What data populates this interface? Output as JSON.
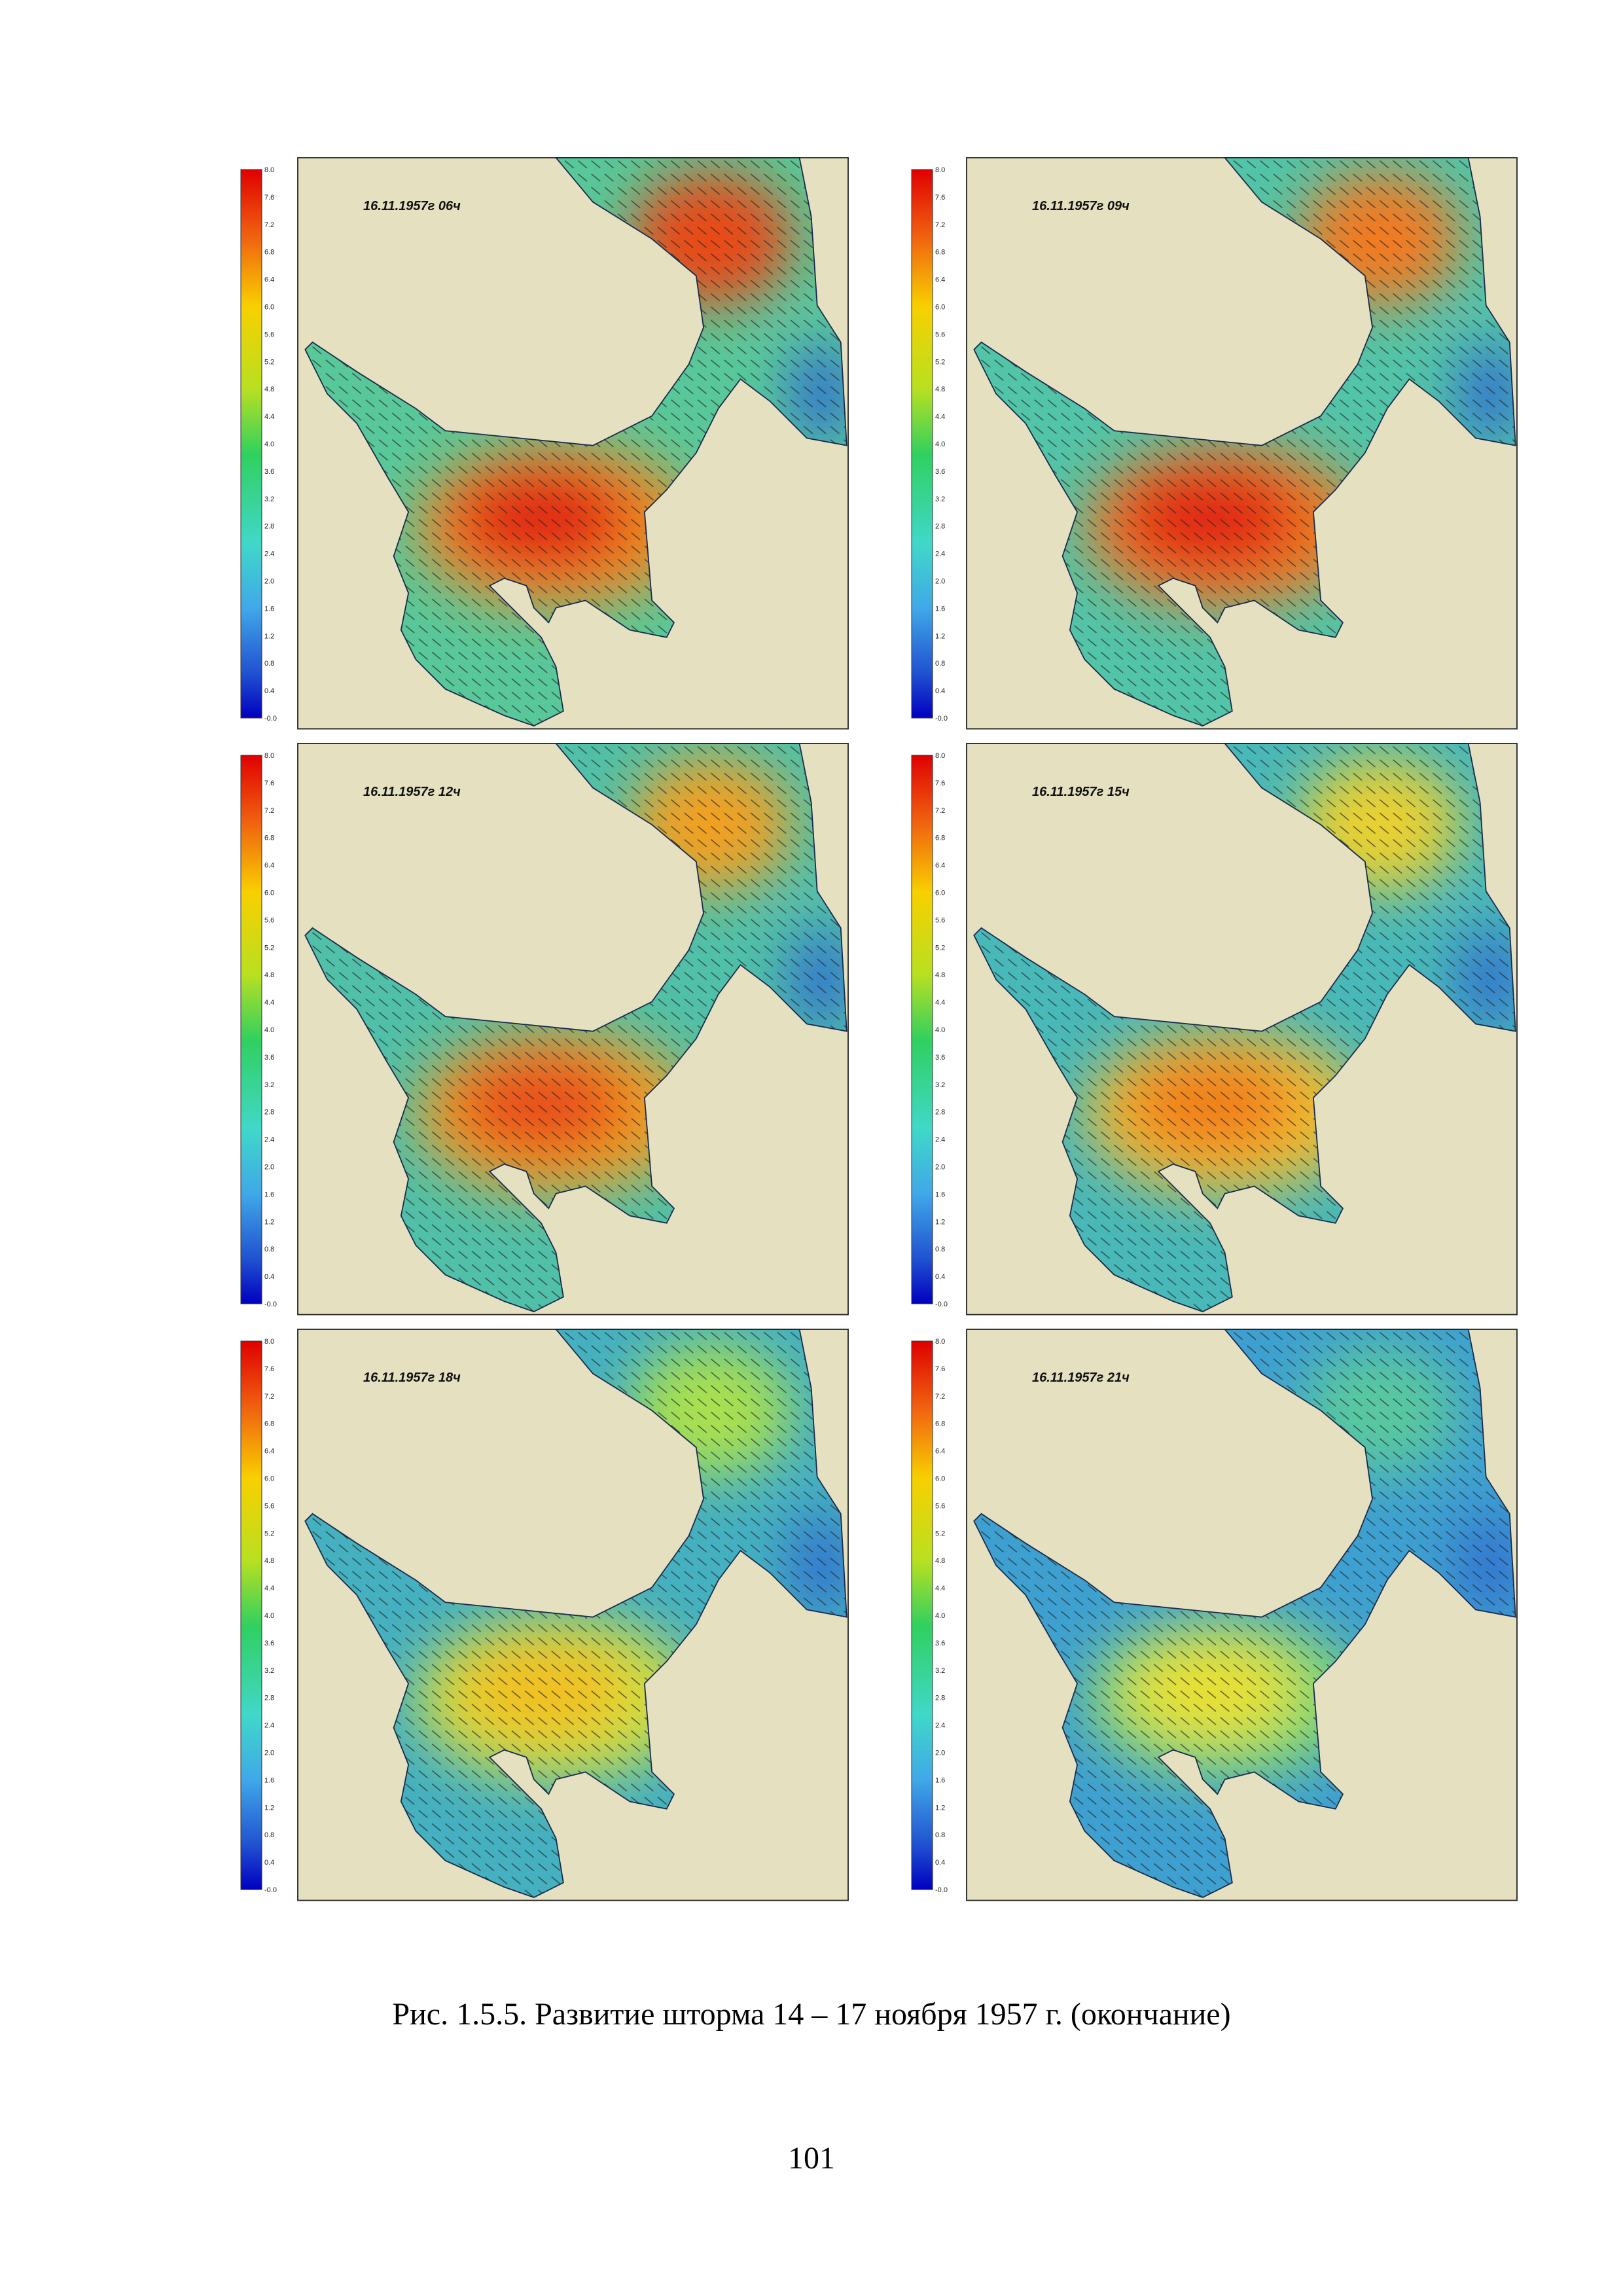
{
  "panels": [
    {
      "title": "16.11.1957г 06ч"
    },
    {
      "title": "16.11.1957г 09ч"
    },
    {
      "title": "16.11.1957г 12ч"
    },
    {
      "title": "16.11.1957г 15ч"
    },
    {
      "title": "16.11.1957г 18ч"
    },
    {
      "title": "16.11.1957г 21ч"
    }
  ],
  "colorbar": {
    "ticks": [
      "8.0",
      "7.6",
      "7.2",
      "6.8",
      "6.4",
      "6.0",
      "5.6",
      "5.2",
      "4.8",
      "4.4",
      "4.0",
      "3.6",
      "3.2",
      "2.8",
      "2.4",
      "2.0",
      "1.6",
      "1.2",
      "0.8",
      "0.4",
      "-0.0"
    ]
  },
  "caption": "Рис. 1.5.5. Развитие шторма 14 – 17 ноября 1957 г. (окончание)",
  "page_number": "101"
}
